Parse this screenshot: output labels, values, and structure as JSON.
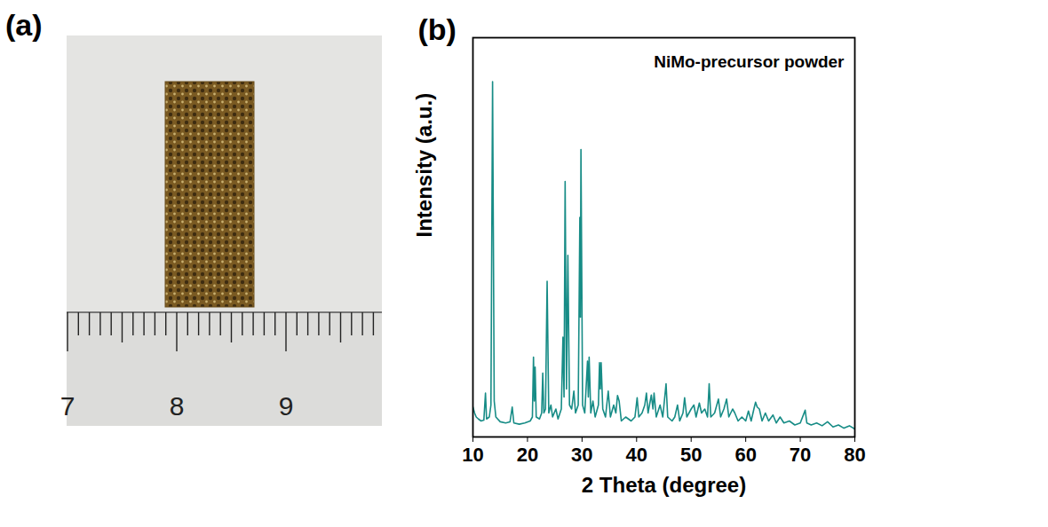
{
  "panel_a": {
    "label": "(a)",
    "ruler_ticks": [
      7,
      8,
      9
    ]
  },
  "chart_data": {
    "panel": "(b)",
    "type": "line",
    "annotation": "NiMo-precursor powder",
    "x_label": "2 Theta (degree)",
    "y_label": "Intensity (a.u.)",
    "color": "#178c86",
    "xlim": [
      10,
      80
    ],
    "xticks": [
      10,
      20,
      30,
      40,
      50,
      60,
      70,
      80
    ],
    "ylim": [
      0,
      100
    ],
    "tick_labels": "x",
    "x": [
      10.0,
      10.3,
      10.6,
      11.0,
      11.5,
      12.0,
      12.3,
      12.5,
      13.0,
      13.3,
      13.6,
      13.9,
      14.2,
      15.0,
      16.0,
      16.8,
      17.2,
      17.5,
      18.5,
      19.5,
      20.5,
      20.9,
      21.1,
      21.25,
      21.4,
      21.6,
      22.2,
      22.6,
      22.8,
      23.0,
      23.3,
      23.6,
      23.9,
      24.3,
      24.6,
      25.2,
      25.6,
      26.2,
      26.5,
      26.7,
      26.9,
      27.15,
      27.4,
      27.7,
      28.1,
      28.5,
      28.8,
      29.3,
      29.6,
      29.7,
      29.8,
      30.1,
      30.5,
      31.0,
      31.15,
      31.3,
      31.6,
      32.0,
      32.4,
      33.0,
      33.2,
      33.35,
      33.5,
      33.8,
      34.3,
      34.8,
      35.2,
      35.8,
      36.2,
      36.5,
      36.8,
      37.2,
      38.0,
      39.0,
      39.7,
      40.1,
      40.4,
      41.0,
      41.5,
      41.8,
      42.1,
      42.7,
      43.0,
      43.2,
      43.6,
      44.3,
      44.8,
      45.4,
      45.7,
      46.5,
      47.0,
      47.5,
      47.9,
      48.5,
      48.8,
      49.2,
      50.0,
      50.5,
      50.9,
      51.5,
      51.9,
      52.5,
      53.0,
      53.3,
      53.6,
      54.3,
      55.0,
      55.4,
      56.0,
      56.5,
      56.9,
      57.6,
      58.0,
      58.6,
      59.3,
      60.0,
      60.5,
      61.0,
      61.5,
      61.8,
      62.1,
      62.5,
      63.0,
      63.6,
      64.2,
      65.0,
      65.6,
      66.3,
      67.0,
      68.0,
      69.0,
      70.0,
      70.9,
      71.2,
      72.0,
      73.0,
      74.0,
      75.0,
      76.0,
      77.0,
      78.0,
      79.0,
      80.0
    ],
    "values": [
      7.5,
      6,
      5,
      4.5,
      4,
      4.2,
      11,
      4.5,
      5,
      8,
      89,
      9,
      5,
      3.8,
      3.5,
      3.8,
      7.5,
      3.5,
      3.2,
      3.5,
      4,
      5,
      20,
      9,
      17.5,
      5,
      4.5,
      6,
      16,
      6,
      7,
      39,
      6,
      8,
      5,
      7,
      4.5,
      7,
      25,
      10,
      64,
      12,
      45.5,
      8,
      7,
      11.5,
      6,
      8,
      55,
      30,
      72,
      8,
      6,
      19,
      10,
      20,
      6,
      9,
      5,
      8,
      18.6,
      12,
      18.6,
      7,
      5,
      11.5,
      5,
      8,
      6,
      10.4,
      9,
      4,
      5,
      4,
      5,
      9.8,
      5,
      6,
      8,
      11,
      6,
      10.5,
      7,
      11,
      5,
      8,
      5,
      13.3,
      5,
      4,
      5,
      8,
      4,
      6,
      9.8,
      5,
      7,
      8,
      5,
      8.5,
      6,
      7,
      5,
      13.3,
      5,
      6,
      9.5,
      5,
      7,
      9.5,
      5,
      7,
      6,
      4,
      5,
      4,
      6.5,
      4,
      7,
      8.7,
      7.5,
      7,
      4,
      6,
      4,
      5.5,
      3.5,
      5,
      3.5,
      4,
      3,
      3.5,
      6.7,
      3.5,
      3,
      3.5,
      2.8,
      3.8,
      2.5,
      3,
      2.2,
      2.8,
      2
    ]
  }
}
